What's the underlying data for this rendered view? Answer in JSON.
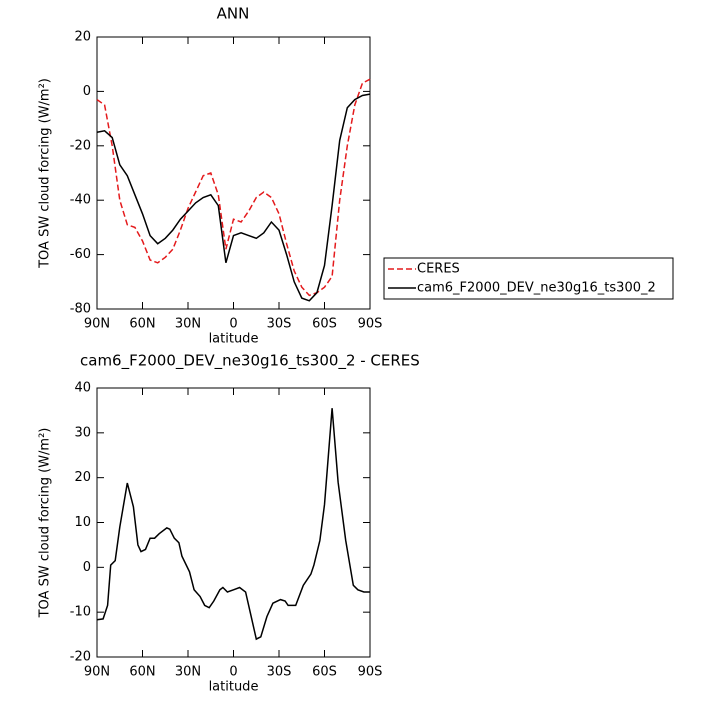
{
  "chart_data": [
    {
      "type": "line",
      "title": "ANN",
      "x_label": "latitude",
      "y_label": "TOA SW cloud forcing (W/m²)",
      "x": [
        90,
        85,
        80,
        75,
        70,
        65,
        60,
        55,
        50,
        45,
        40,
        35,
        30,
        25,
        20,
        15,
        10,
        5,
        0,
        -5,
        -10,
        -15,
        -20,
        -25,
        -30,
        -35,
        -40,
        -45,
        -50,
        -55,
        -60,
        -65,
        -70,
        -75,
        -80,
        -85,
        -90
      ],
      "series": [
        {
          "name": "CERES",
          "color": "#e41a1c",
          "dashed": true,
          "values": [
            -3,
            -5,
            -20,
            -40,
            -49,
            -50,
            -55,
            -62,
            -63,
            -61,
            -58,
            -51,
            -43,
            -37,
            -31,
            -30,
            -38,
            -58,
            -47,
            -48,
            -44,
            -39,
            -37,
            -39,
            -45,
            -56,
            -66,
            -72,
            -75,
            -74,
            -72,
            -68,
            -40,
            -20,
            -5,
            3,
            4.5
          ]
        },
        {
          "name": "cam6_F2000_DEV_ne30g16_ts300_2",
          "color": "#000000",
          "dashed": false,
          "values": [
            -15,
            -14.5,
            -17,
            -27,
            -31,
            -38,
            -45,
            -53,
            -56,
            -54,
            -51,
            -47,
            -44,
            -41,
            -39,
            -38,
            -42,
            -63,
            -53,
            -52,
            -53,
            -54,
            -52,
            -48,
            -51,
            -60,
            -70,
            -76,
            -77,
            -74,
            -64,
            -42,
            -18,
            -6,
            -3,
            -1.5,
            -1
          ]
        }
      ],
      "xlim": [
        90,
        -90
      ],
      "xticks": [
        {
          "value": 90,
          "label": "90N"
        },
        {
          "value": 60,
          "label": "60N"
        },
        {
          "value": 30,
          "label": "30N"
        },
        0,
        {
          "value": -30,
          "label": "30S"
        },
        {
          "value": -60,
          "label": "60S"
        },
        {
          "value": -90,
          "label": "90S"
        }
      ],
      "ylim": [
        -80,
        20
      ],
      "yticks": [
        -80,
        -60,
        -40,
        -20,
        0,
        20
      ],
      "legend": "right"
    },
    {
      "type": "line",
      "title": "cam6_F2000_DEV_ne30g16_ts300_2 - CERES",
      "x_label": "latitude",
      "y_label": "TOA SW cloud forcing (W/m²)",
      "x": [
        90,
        86,
        83,
        81,
        78,
        75,
        70,
        66,
        63,
        61,
        58,
        55,
        52,
        49,
        44,
        42,
        39,
        36,
        34,
        29,
        26,
        22,
        19,
        16,
        13,
        9,
        7,
        4,
        0,
        -4,
        -8,
        -11,
        -15,
        -18,
        -22,
        -26,
        -31,
        -34,
        -36,
        -41,
        -46,
        -51,
        -53,
        -57,
        -60,
        -65,
        -69,
        -74,
        -79,
        -82,
        -86,
        -90
      ],
      "series": [
        {
          "color": "#000000",
          "dashed": false,
          "values": [
            -11.7,
            -11.5,
            -8.5,
            0.5,
            1.5,
            9,
            18.8,
            13.5,
            5,
            3.5,
            4,
            6.5,
            6.5,
            7.5,
            8.8,
            8.5,
            6.5,
            5.5,
            2.5,
            -1,
            -5,
            -6.5,
            -8.5,
            -9,
            -7.5,
            -5,
            -4.5,
            -5.5,
            -5,
            -4.5,
            -5.5,
            -10,
            -16,
            -15.5,
            -11,
            -8,
            -7.2,
            -7.5,
            -8.5,
            -8.5,
            -4,
            -1.5,
            0.5,
            6,
            14,
            35.5,
            19,
            6,
            -4,
            -5,
            -5.5,
            -5.5
          ]
        }
      ],
      "xlim": [
        90,
        -90
      ],
      "xticks": [
        {
          "value": 90,
          "label": "90N"
        },
        {
          "value": 60,
          "label": "60N"
        },
        {
          "value": 30,
          "label": "30N"
        },
        0,
        {
          "value": -30,
          "label": "30S"
        },
        {
          "value": -60,
          "label": "60S"
        },
        {
          "value": -90,
          "label": "90S"
        }
      ],
      "ylim": [
        -20,
        40
      ],
      "yticks": [
        -20,
        -10,
        0,
        10,
        20,
        30,
        40
      ]
    }
  ]
}
